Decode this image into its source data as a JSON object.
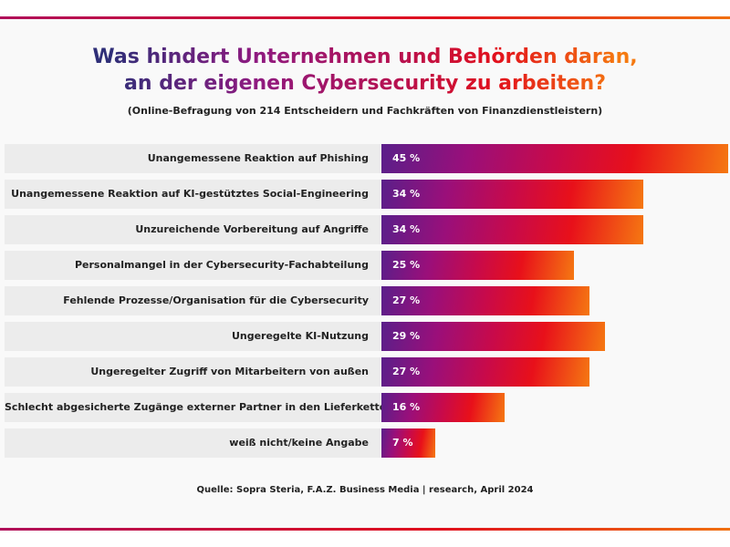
{
  "title_line1": "Was hindert Unternehmen und Behörden daran,",
  "title_line2": "an der eigenen Cybersecurity zu arbeiten?",
  "subtitle": "(Online-Befragung von 214 Entscheidern und Fachkräften von Finanzdienstleistern)",
  "source": "Quelle: Sopra Steria, F.A.Z. Business Media | research, April 2024",
  "colors": {
    "start": "#5a1f8a",
    "mid": "#e8101a",
    "end": "#f57812"
  },
  "chart_data": {
    "type": "bar",
    "orientation": "horizontal",
    "unit": "%",
    "categories": [
      "Unangemessene Reaktion auf Phishing",
      "Unangemessene Reaktion auf KI-gestütztes Social-Engineering",
      "Unzureichende Vorbereitung auf Angriffe",
      "Personalmangel in der Cybersecurity-Fachabteilung",
      "Fehlende Prozesse/Organisation für die Cybersecurity",
      "Ungeregelte KI-Nutzung",
      "Ungeregelter Zugriff von Mitarbeitern von außen",
      "Schlecht abgesicherte Zugänge externer Partner in den Lieferketten",
      "weiß nicht/keine Angabe"
    ],
    "values": [
      45,
      34,
      34,
      25,
      27,
      29,
      27,
      16,
      7
    ],
    "labels": [
      "45 %",
      "34 %",
      "34 %",
      "25 %",
      "27 %",
      "29 %",
      "27 %",
      "16 %",
      "7 %"
    ]
  }
}
